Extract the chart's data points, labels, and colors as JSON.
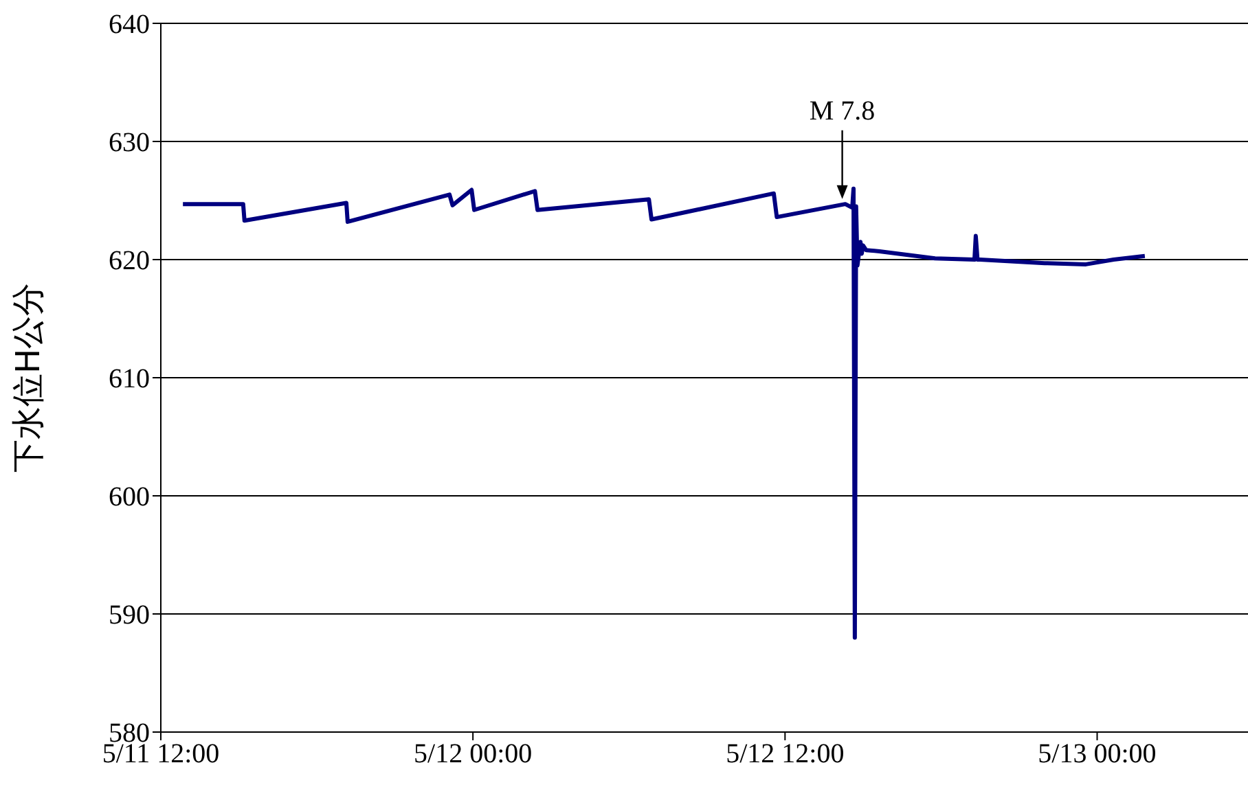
{
  "chart_data": {
    "type": "line",
    "ylabel": "下水位H公分",
    "x": [
      "--05-11T12:51",
      "--05-11T15:10",
      "--05-11T15:13",
      "--05-11T19:08",
      "--05-11T19:11",
      "--05-11T23:06",
      "--05-11T23:13",
      "--05-11T23:57",
      "--05-12T00:03",
      "--05-12T02:23",
      "--05-12T02:29",
      "--05-12T06:46",
      "--05-12T06:52",
      "--05-12T11:34",
      "--05-12T11:41",
      "--05-12T14:19",
      "--05-12T14:35",
      "--05-12T14:38",
      "--05-12T14:41",
      "--05-12T14:44",
      "--05-12T14:47",
      "--05-12T14:54",
      "--05-12T14:57",
      "--05-12T15:00",
      "--05-12T15:07",
      "--05-12T15:38",
      "--05-12T17:46",
      "--05-12T19:17",
      "--05-12T19:20",
      "--05-12T19:24",
      "--05-12T19:30",
      "--05-12T21:59",
      "--05-12T23:34",
      "--05-13T00:38",
      "--05-13T01:50"
    ],
    "series": [
      {
        "color": "#000080",
        "values": [
          624.7,
          624.7,
          623.3,
          624.8,
          623.2,
          625.5,
          624.6,
          625.9,
          624.2,
          625.8,
          624.2,
          625.1,
          623.4,
          625.6,
          623.6,
          624.7,
          624.4,
          626,
          588,
          624.5,
          619.5,
          621.5,
          620.5,
          621.2,
          620.8,
          620.7,
          620.1,
          620,
          622,
          620,
          620,
          619.7,
          619.6,
          620,
          620.3
        ]
      }
    ],
    "xlim": [
      "--05-11T12:00",
      "--05-13T05:48"
    ],
    "xticks": [
      {
        "value": "--05-11T12:00",
        "label": "5/11 12:00"
      },
      {
        "value": "--05-12T00:00",
        "label": "5/12 00:00"
      },
      {
        "value": "--05-12T12:00",
        "label": "5/12 12:00"
      },
      {
        "value": "--05-13T00:00",
        "label": "5/13 00:00"
      }
    ],
    "ylim": [
      580,
      640
    ],
    "yticks": [
      580,
      590,
      600,
      610,
      620,
      630,
      640
    ],
    "grid": "y",
    "legend": false,
    "marker": "none",
    "line_style": "solid",
    "annotations": [
      {
        "text": "M 7.8",
        "x": "--05-12T14:12",
        "y": 624.9
      }
    ]
  }
}
